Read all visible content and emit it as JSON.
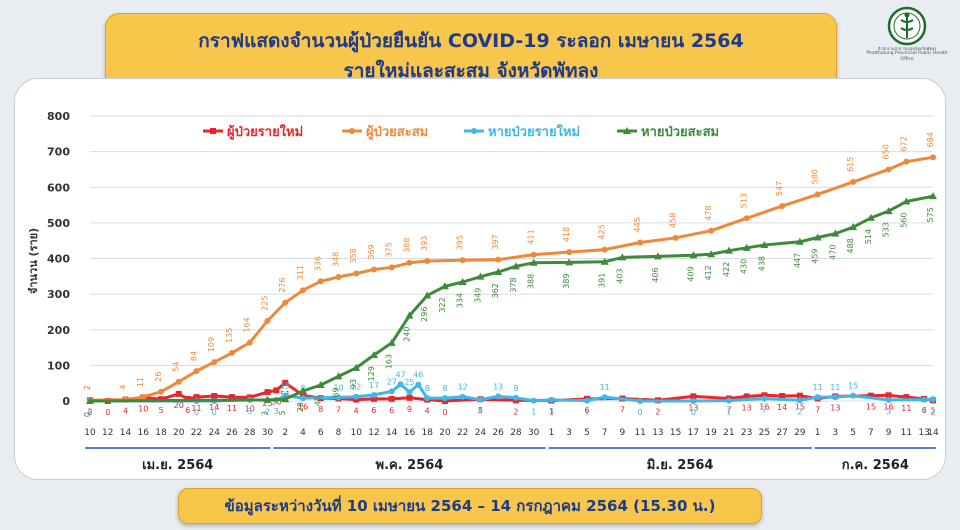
{
  "header": {
    "title_line1": "กราฟแสดงจำนวนผู้ป่วยยืนยัน COVID-19 ระลอก เมษายน 2564",
    "title_line2": "รายใหม่และสะสม จังหวัดพัทลุง",
    "logo_line1": "สำนักงานสาธารณสุขจังหวัดพัทลุง",
    "logo_line2": "Phatthalung Provincial Public Health Office"
  },
  "footer": {
    "note": "ข้อมูลระหว่างวันที่ 10 เมษายน 2564 – 14 กรกฎาคม 2564 (15.30 น.)"
  },
  "chart_data": {
    "type": "line",
    "ylabel": "จำนวน (ราย)",
    "ylim": [
      0,
      800
    ],
    "yticks": [
      0,
      100,
      200,
      300,
      400,
      500,
      600,
      700,
      800
    ],
    "x_start": "2021-04-10",
    "x_end": "2021-07-14",
    "xticks": [
      {
        "date": "2021-04-10",
        "label": "10"
      },
      {
        "date": "2021-04-12",
        "label": "12"
      },
      {
        "date": "2021-04-14",
        "label": "14"
      },
      {
        "date": "2021-04-16",
        "label": "16"
      },
      {
        "date": "2021-04-18",
        "label": "18"
      },
      {
        "date": "2021-04-20",
        "label": "20"
      },
      {
        "date": "2021-04-22",
        "label": "22"
      },
      {
        "date": "2021-04-24",
        "label": "24"
      },
      {
        "date": "2021-04-26",
        "label": "26"
      },
      {
        "date": "2021-04-28",
        "label": "28"
      },
      {
        "date": "2021-04-30",
        "label": "30"
      },
      {
        "date": "2021-05-02",
        "label": "2"
      },
      {
        "date": "2021-05-04",
        "label": "4"
      },
      {
        "date": "2021-05-06",
        "label": "6"
      },
      {
        "date": "2021-05-08",
        "label": "8"
      },
      {
        "date": "2021-05-10",
        "label": "10"
      },
      {
        "date": "2021-05-12",
        "label": "12"
      },
      {
        "date": "2021-05-14",
        "label": "14"
      },
      {
        "date": "2021-05-16",
        "label": "16"
      },
      {
        "date": "2021-05-18",
        "label": "18"
      },
      {
        "date": "2021-05-20",
        "label": "20"
      },
      {
        "date": "2021-05-22",
        "label": "22"
      },
      {
        "date": "2021-05-24",
        "label": "24"
      },
      {
        "date": "2021-05-26",
        "label": "26"
      },
      {
        "date": "2021-05-28",
        "label": "28"
      },
      {
        "date": "2021-05-30",
        "label": "30"
      },
      {
        "date": "2021-06-01",
        "label": "1"
      },
      {
        "date": "2021-06-03",
        "label": "3"
      },
      {
        "date": "2021-06-05",
        "label": "5"
      },
      {
        "date": "2021-06-07",
        "label": "7"
      },
      {
        "date": "2021-06-09",
        "label": "9"
      },
      {
        "date": "2021-06-11",
        "label": "11"
      },
      {
        "date": "2021-06-13",
        "label": "13"
      },
      {
        "date": "2021-06-15",
        "label": "15"
      },
      {
        "date": "2021-06-17",
        "label": "17"
      },
      {
        "date": "2021-06-19",
        "label": "19"
      },
      {
        "date": "2021-06-21",
        "label": "21"
      },
      {
        "date": "2021-06-23",
        "label": "23"
      },
      {
        "date": "2021-06-25",
        "label": "25"
      },
      {
        "date": "2021-06-27",
        "label": "27"
      },
      {
        "date": "2021-06-29",
        "label": "29"
      },
      {
        "date": "2021-07-01",
        "label": "1"
      },
      {
        "date": "2021-07-03",
        "label": "3"
      },
      {
        "date": "2021-07-05",
        "label": "5"
      },
      {
        "date": "2021-07-07",
        "label": "7"
      },
      {
        "date": "2021-07-09",
        "label": "9"
      },
      {
        "date": "2021-07-11",
        "label": "11"
      },
      {
        "date": "2021-07-13",
        "label": "13"
      },
      {
        "date": "2021-07-14",
        "label": "14"
      }
    ],
    "months": [
      {
        "label": "เม.ย. 2564",
        "from": "2021-04-10",
        "to": "2021-04-30"
      },
      {
        "label": "พ.ค. 2564",
        "from": "2021-05-01",
        "to": "2021-05-31"
      },
      {
        "label": "มิ.ย. 2564",
        "from": "2021-06-01",
        "to": "2021-06-30"
      },
      {
        "label": "ก.ค. 2564",
        "from": "2021-07-01",
        "to": "2021-07-14"
      }
    ],
    "legend_position": "top",
    "series": [
      {
        "name": "ผู้ป่วยรายใหม่",
        "color": "#e8262b",
        "marker": "square",
        "labels": "below",
        "points": [
          [
            "2021-04-10",
            2
          ],
          [
            "2021-04-12",
            0
          ],
          [
            "2021-04-14",
            4
          ],
          [
            "2021-04-16",
            10
          ],
          [
            "2021-04-18",
            5
          ],
          [
            "2021-04-20",
            20
          ],
          [
            "2021-04-21",
            6
          ],
          [
            "2021-04-22",
            11
          ],
          [
            "2021-04-24",
            14
          ],
          [
            "2021-04-26",
            11
          ],
          [
            "2021-04-28",
            10
          ],
          [
            "2021-04-30",
            25
          ],
          [
            "2021-05-01",
            30
          ],
          [
            "2021-05-02",
            51
          ],
          [
            "2021-05-04",
            16
          ],
          [
            "2021-05-06",
            8
          ],
          [
            "2021-05-08",
            7
          ],
          [
            "2021-05-10",
            4
          ],
          [
            "2021-05-12",
            6
          ],
          [
            "2021-05-14",
            6
          ],
          [
            "2021-05-16",
            9
          ],
          [
            "2021-05-18",
            4
          ],
          [
            "2021-05-20",
            0
          ],
          [
            "2021-05-24",
            5
          ],
          [
            "2021-05-28",
            2
          ],
          [
            "2021-06-01",
            1
          ],
          [
            "2021-06-05",
            6
          ],
          [
            "2021-06-09",
            7
          ],
          [
            "2021-06-13",
            2
          ],
          [
            "2021-06-17",
            13
          ],
          [
            "2021-06-21",
            7
          ],
          [
            "2021-06-23",
            13
          ],
          [
            "2021-06-25",
            16
          ],
          [
            "2021-06-27",
            14
          ],
          [
            "2021-06-29",
            15
          ],
          [
            "2021-07-01",
            7
          ],
          [
            "2021-07-03",
            13
          ],
          [
            "2021-07-07",
            15
          ],
          [
            "2021-07-09",
            16
          ],
          [
            "2021-07-11",
            11
          ],
          [
            "2021-07-13",
            6
          ],
          [
            "2021-07-14",
            2
          ]
        ]
      },
      {
        "name": "ผู้ป่วยสะสม",
        "color": "#f0883a",
        "marker": "circle",
        "labels": "above",
        "points": [
          [
            "2021-04-10",
            2
          ],
          [
            "2021-04-14",
            4
          ],
          [
            "2021-04-16",
            11
          ],
          [
            "2021-04-18",
            26
          ],
          [
            "2021-04-20",
            54
          ],
          [
            "2021-04-22",
            84
          ],
          [
            "2021-04-24",
            109
          ],
          [
            "2021-04-26",
            135
          ],
          [
            "2021-04-28",
            164
          ],
          [
            "2021-04-30",
            225
          ],
          [
            "2021-05-02",
            276
          ],
          [
            "2021-05-04",
            311
          ],
          [
            "2021-05-06",
            336
          ],
          [
            "2021-05-08",
            348
          ],
          [
            "2021-05-10",
            358
          ],
          [
            "2021-05-12",
            369
          ],
          [
            "2021-05-14",
            375
          ],
          [
            "2021-05-16",
            388
          ],
          [
            "2021-05-18",
            393
          ],
          [
            "2021-05-22",
            395
          ],
          [
            "2021-05-26",
            397
          ],
          [
            "2021-05-30",
            411
          ],
          [
            "2021-06-03",
            418
          ],
          [
            "2021-06-07",
            425
          ],
          [
            "2021-06-11",
            445
          ],
          [
            "2021-06-15",
            458
          ],
          [
            "2021-06-19",
            478
          ],
          [
            "2021-06-23",
            513
          ],
          [
            "2021-06-27",
            547
          ],
          [
            "2021-07-01",
            580
          ],
          [
            "2021-07-05",
            615
          ],
          [
            "2021-07-09",
            650
          ],
          [
            "2021-07-11",
            672
          ],
          [
            "2021-07-14",
            684
          ]
        ]
      },
      {
        "name": "หายป่วยรายใหม่",
        "color": "#3fb7e8",
        "marker": "circle",
        "labels": "mixed",
        "points": [
          [
            "2021-04-10",
            0
          ],
          [
            "2021-04-22",
            0
          ],
          [
            "2021-04-24",
            0
          ],
          [
            "2021-04-28",
            3
          ],
          [
            "2021-04-30",
            2
          ],
          [
            "2021-05-01",
            3
          ],
          [
            "2021-05-02",
            15
          ],
          [
            "2021-05-04",
            8
          ],
          [
            "2021-05-08",
            10
          ],
          [
            "2021-05-10",
            12
          ],
          [
            "2021-05-12",
            17
          ],
          [
            "2021-05-14",
            27
          ],
          [
            "2021-05-15",
            47
          ],
          [
            "2021-05-16",
            25
          ],
          [
            "2021-05-17",
            46
          ],
          [
            "2021-05-18",
            8
          ],
          [
            "2021-05-20",
            8
          ],
          [
            "2021-05-22",
            12
          ],
          [
            "2021-05-24",
            4
          ],
          [
            "2021-05-26",
            13
          ],
          [
            "2021-05-28",
            9
          ],
          [
            "2021-05-30",
            1
          ],
          [
            "2021-06-01",
            3
          ],
          [
            "2021-06-05",
            1
          ],
          [
            "2021-06-07",
            11
          ],
          [
            "2021-06-11",
            0
          ],
          [
            "2021-06-17",
            0
          ],
          [
            "2021-06-21",
            1
          ],
          [
            "2021-06-25",
            7
          ],
          [
            "2021-06-29",
            2
          ],
          [
            "2021-07-01",
            11
          ],
          [
            "2021-07-03",
            11
          ],
          [
            "2021-07-05",
            15
          ],
          [
            "2021-07-09",
            3
          ],
          [
            "2021-07-13",
            4
          ],
          [
            "2021-07-14",
            5
          ]
        ]
      },
      {
        "name": "หายป่วยสะสม",
        "color": "#3f8a3a",
        "marker": "triangle",
        "labels": "below",
        "points": [
          [
            "2021-04-10",
            0
          ],
          [
            "2021-04-30",
            3
          ],
          [
            "2021-05-02",
            5
          ],
          [
            "2021-05-04",
            28
          ],
          [
            "2021-05-06",
            45
          ],
          [
            "2021-05-08",
            69
          ],
          [
            "2021-05-10",
            93
          ],
          [
            "2021-05-12",
            129
          ],
          [
            "2021-05-14",
            163
          ],
          [
            "2021-05-16",
            240
          ],
          [
            "2021-05-18",
            296
          ],
          [
            "2021-05-20",
            322
          ],
          [
            "2021-05-22",
            334
          ],
          [
            "2021-05-24",
            349
          ],
          [
            "2021-05-26",
            362
          ],
          [
            "2021-05-28",
            378
          ],
          [
            "2021-05-30",
            388
          ],
          [
            "2021-06-03",
            389
          ],
          [
            "2021-06-07",
            391
          ],
          [
            "2021-06-09",
            403
          ],
          [
            "2021-06-13",
            406
          ],
          [
            "2021-06-17",
            409
          ],
          [
            "2021-06-19",
            412
          ],
          [
            "2021-06-21",
            422
          ],
          [
            "2021-06-23",
            430
          ],
          [
            "2021-06-25",
            438
          ],
          [
            "2021-06-29",
            447
          ],
          [
            "2021-07-01",
            459
          ],
          [
            "2021-07-03",
            470
          ],
          [
            "2021-07-05",
            488
          ],
          [
            "2021-07-07",
            514
          ],
          [
            "2021-07-09",
            533
          ],
          [
            "2021-07-11",
            560
          ],
          [
            "2021-07-14",
            575
          ]
        ]
      }
    ]
  }
}
